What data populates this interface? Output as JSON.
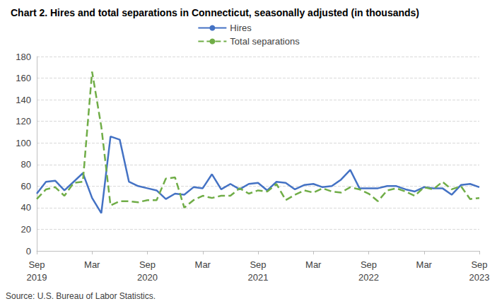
{
  "chart_data": {
    "type": "line",
    "title": "Chart 2. Hires and total separations in Connecticut, seasonally adjusted (in thousands)",
    "annotation": "Source: U.S. Bureau of Labor Statistics.",
    "categories": [
      "Sep\n2019",
      null,
      null,
      null,
      null,
      null,
      "Mar",
      null,
      null,
      null,
      null,
      null,
      "Sep\n2020",
      null,
      null,
      null,
      null,
      null,
      "Mar",
      null,
      null,
      null,
      null,
      null,
      "Sep\n2021",
      null,
      null,
      null,
      null,
      null,
      "Mar",
      null,
      null,
      null,
      null,
      null,
      "Sep\n2022",
      null,
      null,
      null,
      null,
      null,
      "Mar",
      null,
      null,
      null,
      null,
      null,
      "Sep\n2023"
    ],
    "series": [
      {
        "name": "Hires",
        "color": "#4472c4",
        "line_style": "solid",
        "values": [
          53,
          64,
          65,
          56,
          64,
          72,
          49,
          35,
          106,
          103,
          64,
          60,
          58,
          56,
          48,
          53,
          52,
          59,
          58,
          71,
          57,
          62,
          57,
          62,
          63,
          56,
          64,
          63,
          57,
          61,
          62,
          59,
          60,
          66,
          75,
          58,
          58,
          58,
          60,
          60,
          57,
          55,
          59,
          58,
          58,
          52,
          61,
          62,
          59
        ]
      },
      {
        "name": "Total separations",
        "color": "#70ad47",
        "line_style": "dashed",
        "values": [
          48,
          57,
          59,
          51,
          63,
          64,
          166,
          115,
          42,
          46,
          46,
          45,
          47,
          47,
          67,
          68,
          40,
          47,
          51,
          49,
          51,
          51,
          58,
          53,
          56,
          55,
          62,
          47,
          52,
          56,
          54,
          58,
          55,
          54,
          59,
          57,
          53,
          46,
          56,
          58,
          55,
          51,
          59,
          57,
          64,
          57,
          60,
          48,
          49
        ]
      }
    ],
    "ylim": [
      0,
      180
    ],
    "yticks": [
      0,
      20,
      40,
      60,
      80,
      100,
      120,
      140,
      160,
      180
    ],
    "grid": true,
    "legend": "top"
  }
}
